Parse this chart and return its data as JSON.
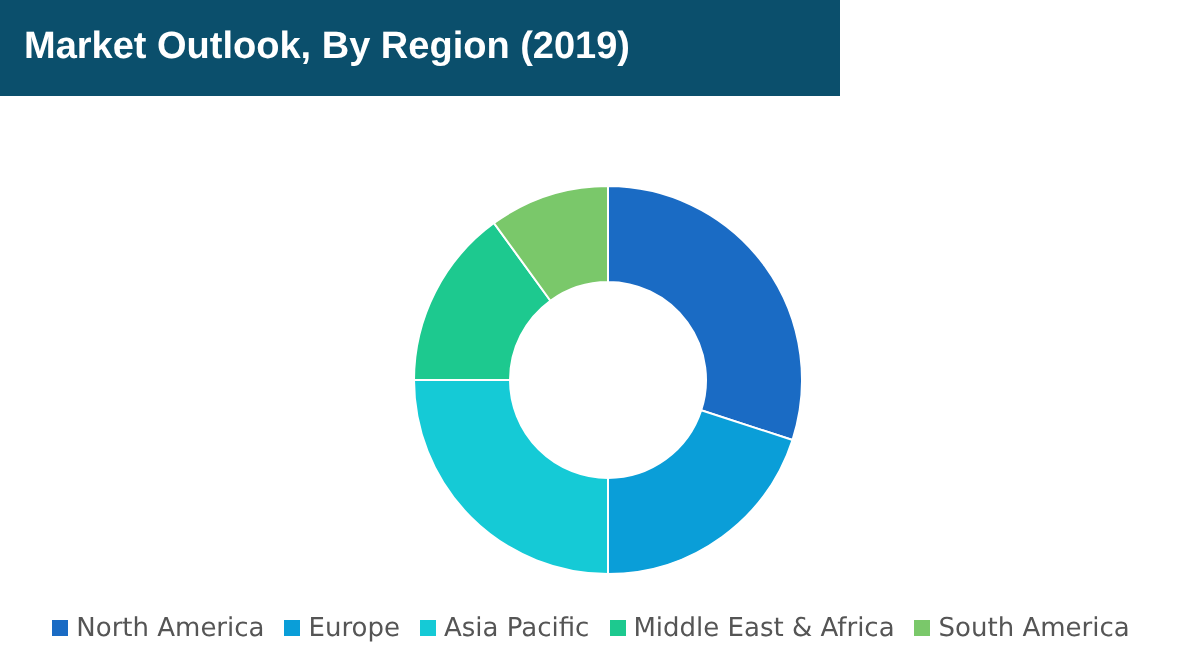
{
  "chart_data": {
    "type": "donut",
    "title": "Market Outlook, By Region (2019)",
    "categories": [
      "North America",
      "Europe",
      "Asia Pacific",
      "Middle East & Africa",
      "South America"
    ],
    "values": [
      30,
      20,
      25,
      15,
      10
    ],
    "colors": [
      "#1a6bc4",
      "#0a9ed8",
      "#15cad6",
      "#1dc98f",
      "#7ac86a"
    ],
    "legend": "bottom"
  }
}
